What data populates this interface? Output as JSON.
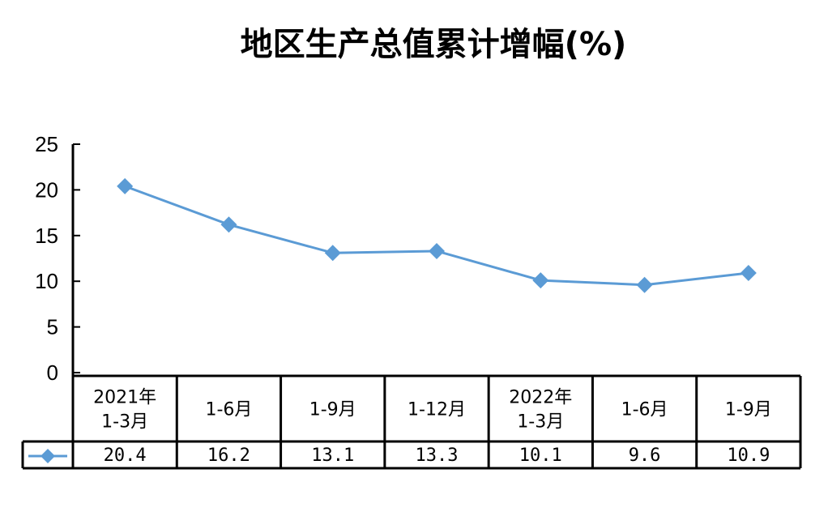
{
  "chart_data": {
    "type": "line",
    "title": "地区生产总值累计增幅(%)",
    "categories": [
      [
        "2021年",
        "1-3月"
      ],
      [
        "1-6月"
      ],
      [
        "1-9月"
      ],
      [
        "1-12月"
      ],
      [
        "2022年",
        "1-3月"
      ],
      [
        "1-6月"
      ],
      [
        "1-9月"
      ]
    ],
    "series": [
      {
        "values": [
          20.4,
          16.2,
          13.1,
          13.3,
          10.1,
          9.6,
          10.9
        ],
        "labels": [
          "20.4",
          "16.2",
          "13.1",
          "13.3",
          "10.1",
          "9.6",
          "10.9"
        ]
      }
    ],
    "ylim": [
      0,
      25
    ],
    "yticks": [
      "0",
      "5",
      "10",
      "15",
      "20",
      "25"
    ],
    "grid": false,
    "legend": "data-table",
    "line_color": "#5B9BD5",
    "axis_color": "#000000"
  }
}
